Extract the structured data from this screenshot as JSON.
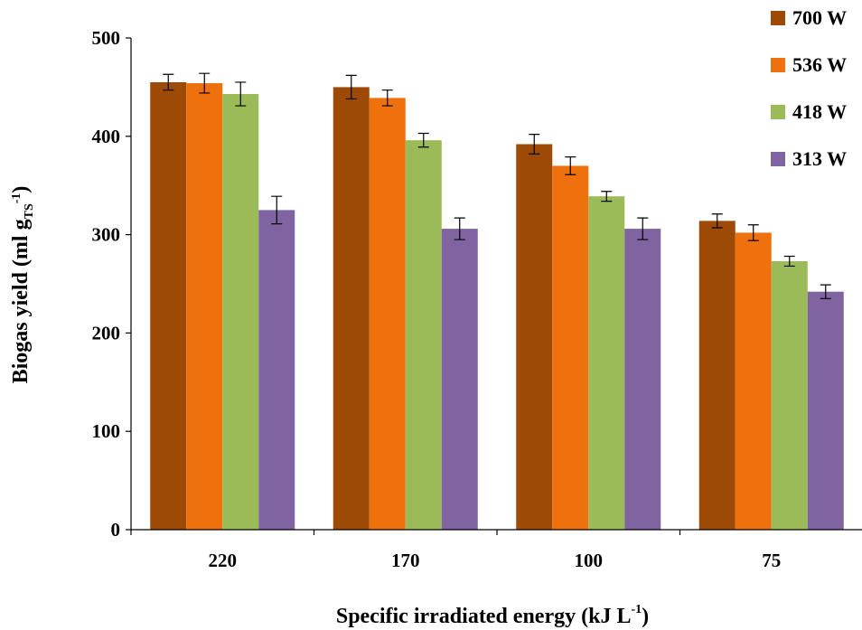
{
  "chart_data": {
    "type": "bar",
    "categories": [
      "220",
      "170",
      "100",
      "75"
    ],
    "series": [
      {
        "name": "700 W",
        "color": "#9C4A06",
        "values": [
          455,
          450,
          392,
          314
        ],
        "errors": [
          8,
          12,
          10,
          7
        ]
      },
      {
        "name": "536 W",
        "color": "#EE710D",
        "values": [
          454,
          439,
          370,
          302
        ],
        "errors": [
          10,
          8,
          9,
          8
        ]
      },
      {
        "name": "418 W",
        "color": "#9BBB59",
        "values": [
          443,
          396,
          339,
          273
        ],
        "errors": [
          12,
          7,
          5,
          5
        ]
      },
      {
        "name": "313 W",
        "color": "#8064A2",
        "values": [
          325,
          306,
          306,
          242
        ],
        "errors": [
          14,
          11,
          11,
          7
        ]
      }
    ],
    "yticks": [
      0,
      100,
      200,
      300,
      400,
      500
    ],
    "ylim": [
      0,
      500
    ],
    "legend_position": "top-right",
    "grid": false,
    "ylabel": {
      "main": "Biogas yield (ml g",
      "sub": "TS",
      "sup": "-1",
      "end": ")"
    },
    "xlabel": {
      "main": "Specific irradiated energy (kJ L",
      "sup": "-1",
      "end": ")"
    }
  }
}
